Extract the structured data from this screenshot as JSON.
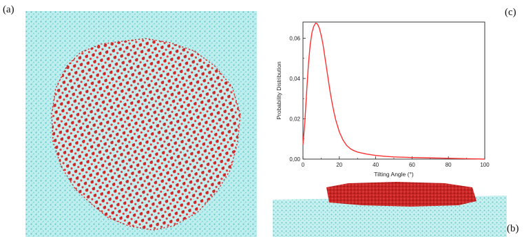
{
  "figure": {
    "labels": {
      "a": "(a)",
      "b": "(b)",
      "c": "(c)"
    },
    "colors": {
      "water": "#7fd6d6",
      "molecule": "#d42a2a",
      "curve": "#ff3030"
    }
  },
  "chart_data": {
    "type": "line",
    "title": "",
    "xlabel": "Tilting Angle (°)",
    "ylabel": "Probability Distribution",
    "xlim": [
      0,
      100
    ],
    "ylim": [
      0,
      0.068
    ],
    "xticks": [
      "0",
      "20",
      "40",
      "60",
      "80",
      "100"
    ],
    "xtick_values": [
      0,
      20,
      40,
      60,
      80,
      100
    ],
    "yticks": [
      "0,00",
      "0,02",
      "0,04",
      "0,06"
    ],
    "ytick_values": [
      0,
      0.02,
      0.04,
      0.06
    ],
    "grid": false,
    "series": [
      {
        "x": [
          0,
          1,
          2,
          3,
          4,
          5,
          6,
          7,
          8,
          9,
          10,
          11,
          12,
          13,
          14,
          15,
          16,
          17,
          18,
          20,
          22,
          24,
          26,
          28,
          30,
          35,
          40,
          45,
          50,
          60,
          70,
          80,
          90,
          95,
          100
        ],
        "y": [
          0.007,
          0.018,
          0.033,
          0.047,
          0.057,
          0.063,
          0.066,
          0.0675,
          0.067,
          0.065,
          0.0615,
          0.057,
          0.051,
          0.045,
          0.039,
          0.033,
          0.028,
          0.0235,
          0.0195,
          0.0135,
          0.0095,
          0.0068,
          0.0052,
          0.0042,
          0.0035,
          0.0025,
          0.0018,
          0.0014,
          0.0011,
          0.0008,
          0.0006,
          0.0004,
          0.0002,
          0.0001,
          0.0
        ]
      }
    ]
  }
}
